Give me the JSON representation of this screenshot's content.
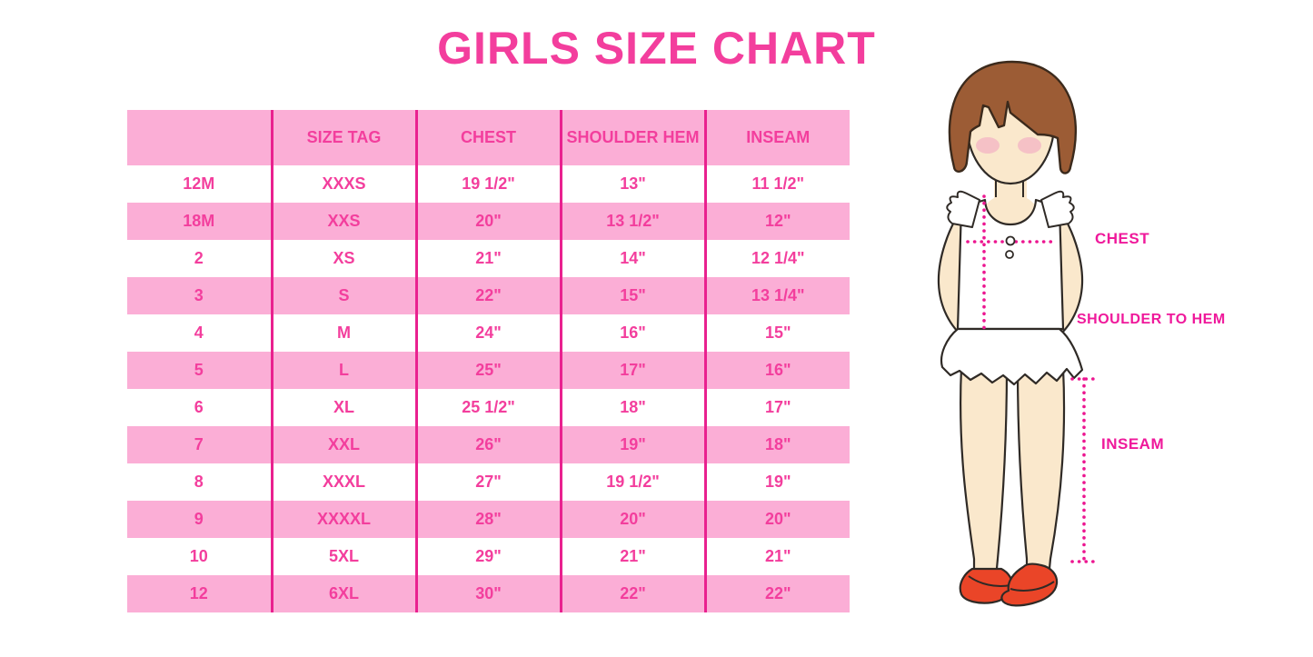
{
  "title": "GIRLS SIZE CHART",
  "chart_data": {
    "type": "table",
    "title": "GIRLS SIZE CHART",
    "columns": [
      "",
      "SIZE TAG",
      "CHEST",
      "SHOULDER HEM",
      "INSEAM"
    ],
    "rows": [
      [
        "12M",
        "XXXS",
        "19 1/2\"",
        "13\"",
        "11 1/2\""
      ],
      [
        "18M",
        "XXS",
        "20\"",
        "13 1/2\"",
        "12\""
      ],
      [
        "2",
        "XS",
        "21\"",
        "14\"",
        "12 1/4\""
      ],
      [
        "3",
        "S",
        "22\"",
        "15\"",
        "13 1/4\""
      ],
      [
        "4",
        "M",
        "24\"",
        "16\"",
        "15\""
      ],
      [
        "5",
        "L",
        "25\"",
        "17\"",
        "16\""
      ],
      [
        "6",
        "XL",
        "25 1/2\"",
        "18\"",
        "17\""
      ],
      [
        "7",
        "XXL",
        "26\"",
        "19\"",
        "18\""
      ],
      [
        "8",
        "XXXL",
        "27\"",
        "19 1/2\"",
        "19\""
      ],
      [
        "9",
        "XXXXL",
        "28\"",
        "20\"",
        "20\""
      ],
      [
        "10",
        "5XL",
        "29\"",
        "21\"",
        "21\""
      ],
      [
        "12",
        "6XL",
        "30\"",
        "22\"",
        "22\""
      ]
    ]
  },
  "diagram": {
    "figure": "girl-with-measurement-lines",
    "chest_label": "CHEST",
    "shoulder_to_hem_label": "SHOULDER TO HEM",
    "inseam_label": "INSEAM"
  },
  "colors": {
    "title_pink": "#f33e9d",
    "table_text_pink": "#f33e9d",
    "row_pink": "#fbaed6",
    "column_line": "#e9218f",
    "label_pink": "#ef199b",
    "dotted_line": "#ec1690",
    "hair_brown": "#9c5c35",
    "skin": "#fae8cc",
    "shoe_red": "#ea4528"
  }
}
